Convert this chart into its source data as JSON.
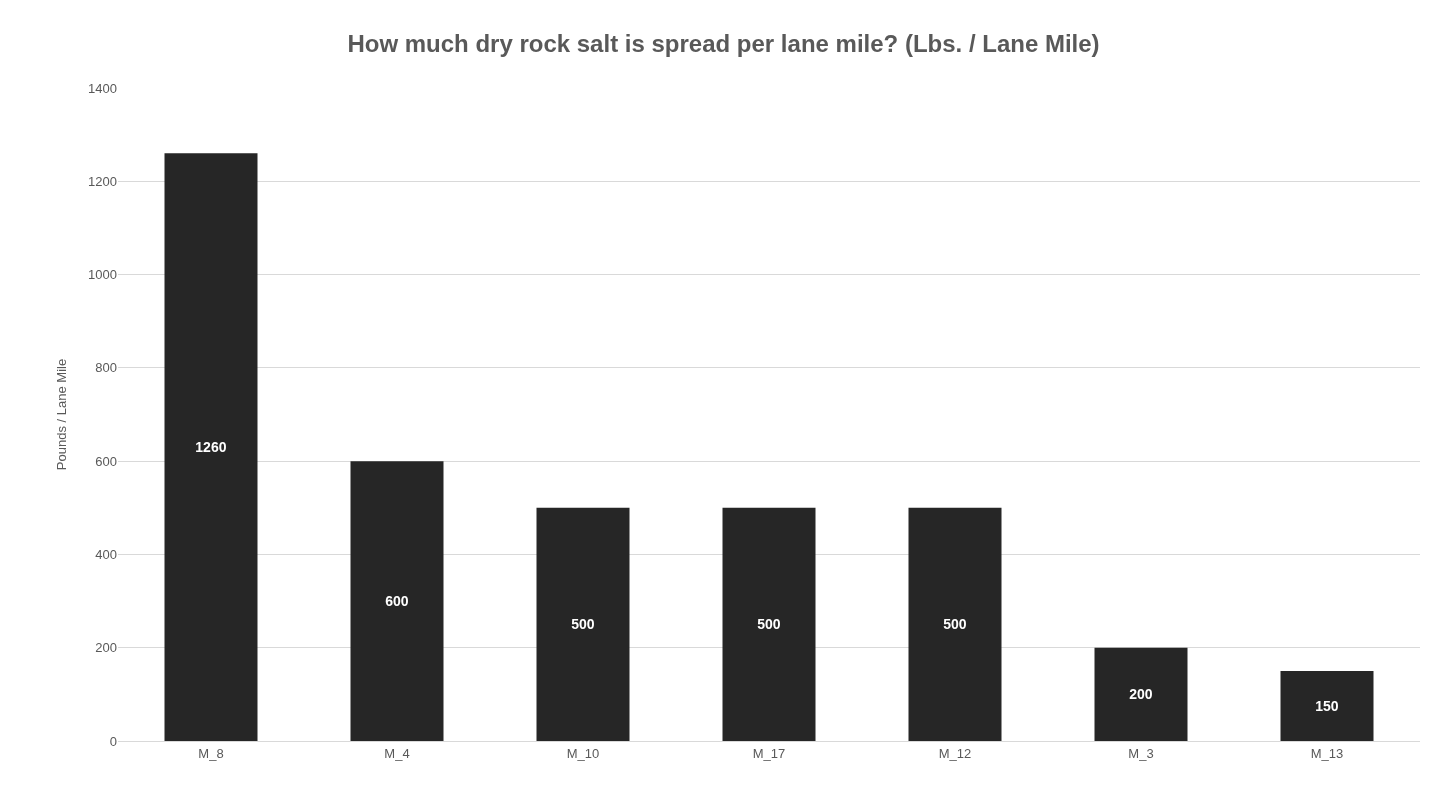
{
  "chart_data": {
    "type": "bar",
    "title": "How much dry rock salt is spread per lane mile? (Lbs. / Lane Mile)",
    "ylabel": "Pounds / Lane Mile",
    "categories": [
      "M_8",
      "M_4",
      "M_10",
      "M_17",
      "M_12",
      "M_3",
      "M_13"
    ],
    "values": [
      1260,
      600,
      500,
      500,
      500,
      200,
      150
    ],
    "color": "#262626",
    "ylim": [
      0,
      1400
    ],
    "yticks": [
      0,
      200,
      400,
      600,
      800,
      1000,
      1200,
      1400
    ],
    "grid": "y",
    "data_labels": true,
    "legend": false
  }
}
